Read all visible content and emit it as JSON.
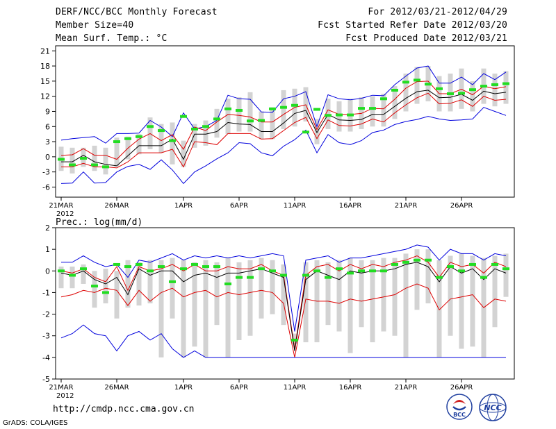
{
  "header": {
    "title": "DERF/NCC/BCC Monthly Forecast",
    "member_size": "Member Size=40",
    "variable": "Mean Surf. Temp.: °C",
    "period": "For 2012/03/21-2012/04/29",
    "started": "Fcst Started Refer Date 2012/03/20",
    "produced": "Fcst Produced Date 2012/03/21"
  },
  "footer": {
    "url": "http://cmdp.ncc.cma.gov.cn",
    "grads": "GrADS: COLA/IGES",
    "logo_bcc": "BCC",
    "logo_ncc": "NCC"
  },
  "colors": {
    "mean": "#000000",
    "obs_range_low": "#dd0000",
    "ensemble_extreme": "#0000dd",
    "obs_marker": "#22dd22",
    "box": "#d3d3d3"
  },
  "chart_data": [
    {
      "type": "line",
      "title": "Mean Surf. Temp.: °C",
      "ylim": [
        -8,
        22
      ],
      "yticks": [
        -6,
        -3,
        0,
        3,
        6,
        9,
        12,
        15,
        18,
        21
      ],
      "xticks": [
        {
          "day": 0,
          "label": "21MAR"
        },
        {
          "day": 5,
          "label": "26MAR"
        },
        {
          "day": 11,
          "label": "1APR"
        },
        {
          "day": 16,
          "label": "6APR"
        },
        {
          "day": 21,
          "label": "11APR"
        },
        {
          "day": 26,
          "label": "16APR"
        },
        {
          "day": 31,
          "label": "21APR"
        },
        {
          "day": 36,
          "label": "26APR"
        }
      ],
      "year_label": "2012",
      "series": [
        {
          "name": "ensemble-max",
          "color": "#0000dd",
          "values": [
            3.3,
            3.6,
            3.8,
            4.0,
            2.7,
            4.6,
            4.6,
            4.7,
            7.2,
            5.9,
            4.0,
            8.7,
            5.5,
            6.0,
            7.2,
            12.2,
            11.5,
            11.4,
            8.9,
            8.8,
            11.5,
            12.0,
            12.9,
            6.0,
            12.3,
            11.5,
            11.3,
            11.6,
            12.2,
            12.1,
            14.3,
            16.0,
            17.6,
            18.0,
            14.6,
            14.6,
            15.8,
            14.3,
            16.5,
            15.3,
            16.8
          ]
        },
        {
          "name": "upper",
          "color": "#dd0000",
          "values": [
            0.3,
            0.4,
            1.6,
            0.3,
            0.3,
            -0.5,
            1.7,
            3.5,
            4.6,
            3.2,
            4.4,
            1.5,
            5.9,
            5.2,
            6.9,
            8.4,
            8.2,
            7.9,
            6.9,
            6.9,
            8.4,
            9.8,
            10.3,
            5.4,
            9.3,
            8.4,
            8.4,
            8.6,
            9.6,
            9.5,
            11.4,
            13.6,
            14.9,
            15.0,
            12.5,
            12.5,
            13.4,
            12.3,
            14.0,
            13.5,
            13.9
          ]
        },
        {
          "name": "mean",
          "color": "#000000",
          "values": [
            -1.0,
            -1.0,
            0.3,
            -1.0,
            -1.5,
            -1.8,
            0.2,
            2.2,
            2.2,
            2.2,
            3.5,
            -0.5,
            4.5,
            4.5,
            5.0,
            6.8,
            6.5,
            6.4,
            5.0,
            5.0,
            6.7,
            8.6,
            9.2,
            4.8,
            8.4,
            7.3,
            7.2,
            7.4,
            8.4,
            8.4,
            10.0,
            11.6,
            12.9,
            13.2,
            11.7,
            11.8,
            12.4,
            11.2,
            13.0,
            12.5,
            12.8
          ]
        },
        {
          "name": "lower",
          "color": "#dd0000",
          "values": [
            -2.0,
            -2.0,
            -1.3,
            -2.0,
            -2.0,
            -2.2,
            -1.0,
            0.8,
            0.8,
            0.8,
            1.5,
            -2.0,
            3.0,
            2.8,
            2.4,
            4.6,
            4.6,
            4.6,
            3.5,
            3.6,
            5.2,
            6.8,
            7.8,
            3.6,
            7.3,
            6.2,
            6.1,
            6.5,
            7.5,
            6.9,
            8.7,
            10.3,
            11.7,
            12.6,
            10.5,
            10.6,
            11.3,
            10.0,
            12.0,
            11.2,
            11.4
          ]
        },
        {
          "name": "ensemble-min",
          "color": "#0000dd",
          "values": [
            -5.3,
            -5.2,
            -3.0,
            -5.2,
            -5.1,
            -3.0,
            -1.9,
            -1.5,
            -2.5,
            -0.6,
            -2.6,
            -5.3,
            -3.0,
            -1.8,
            -0.4,
            0.8,
            2.8,
            2.6,
            0.8,
            0.2,
            2.1,
            3.4,
            5.3,
            0.8,
            4.4,
            2.8,
            2.4,
            3.2,
            4.8,
            5.3,
            6.4,
            7.0,
            7.4,
            8.0,
            7.5,
            7.2,
            7.3,
            7.5,
            9.8,
            9.0,
            8.2
          ]
        }
      ],
      "observations": [
        -0.5,
        -1.6,
        -0.3,
        -1.6,
        -2.0,
        3.0,
        3.6,
        4.0,
        6.0,
        5.2,
        3.2,
        8.0,
        5.5,
        6.0,
        7.5,
        9.5,
        9.2,
        7.1,
        7.2,
        9.5,
        9.8,
        10.2,
        4.9,
        9.4,
        8.2,
        8.3,
        8.3,
        9.6,
        9.6,
        11.5,
        13.2,
        14.8,
        15.2,
        14.4,
        13.5,
        12.5,
        12.6,
        13.3,
        14.0,
        14.3,
        14.5
      ],
      "box_ranges": [
        [
          -2.8,
          2.0
        ],
        [
          -3.3,
          1.8
        ],
        [
          -2.0,
          1.8
        ],
        [
          -2.8,
          2.2
        ],
        [
          -3.5,
          1.8
        ],
        [
          -2.0,
          3.8
        ],
        [
          -0.5,
          4.0
        ],
        [
          0.5,
          4.5
        ],
        [
          1.5,
          7.8
        ],
        [
          0.8,
          6.5
        ],
        [
          -1.5,
          6.8
        ],
        [
          -2.0,
          3.2
        ],
        [
          1.8,
          6.5
        ],
        [
          2.2,
          7.2
        ],
        [
          3.8,
          9.5
        ],
        [
          4.5,
          11.5
        ],
        [
          5.0,
          11.8
        ],
        [
          5.0,
          12.8
        ],
        [
          3.5,
          9.0
        ],
        [
          3.5,
          9.8
        ],
        [
          5.5,
          13.2
        ],
        [
          6.0,
          13.5
        ],
        [
          7.0,
          13.8
        ],
        [
          2.5,
          7.5
        ],
        [
          5.5,
          11.5
        ],
        [
          5.0,
          11.0
        ],
        [
          5.0,
          11.5
        ],
        [
          5.5,
          11.8
        ],
        [
          6.0,
          12.0
        ],
        [
          6.0,
          12.5
        ],
        [
          7.5,
          14.0
        ],
        [
          9.0,
          16.5
        ],
        [
          10.5,
          17.8
        ],
        [
          11.0,
          18.0
        ],
        [
          9.0,
          16.0
        ],
        [
          9.0,
          16.5
        ],
        [
          9.5,
          17.5
        ],
        [
          9.0,
          15.0
        ],
        [
          10.5,
          17.5
        ],
        [
          10.0,
          16.5
        ],
        [
          10.5,
          17.0
        ]
      ]
    },
    {
      "type": "line",
      "title": "Prec.: log(mm/d)",
      "ylim": [
        -5,
        2
      ],
      "yticks": [
        -5,
        -4,
        -3,
        -2,
        -1,
        0,
        1,
        2
      ],
      "xticks": [
        {
          "day": 0,
          "label": "21MAR"
        },
        {
          "day": 5,
          "label": "26MAR"
        },
        {
          "day": 11,
          "label": "1APR"
        },
        {
          "day": 16,
          "label": "6APR"
        },
        {
          "day": 21,
          "label": "11APR"
        },
        {
          "day": 26,
          "label": "16APR"
        },
        {
          "day": 31,
          "label": "21APR"
        },
        {
          "day": 36,
          "label": "26APR"
        }
      ],
      "year_label": "2012",
      "series": [
        {
          "name": "ensemble-max",
          "color": "#0000dd",
          "values": [
            0.4,
            0.4,
            0.7,
            0.4,
            0.2,
            0.3,
            -0.3,
            0.5,
            0.4,
            0.6,
            0.8,
            0.5,
            0.7,
            0.6,
            0.7,
            0.6,
            0.7,
            0.6,
            0.7,
            0.8,
            0.7,
            -2.8,
            0.5,
            0.6,
            0.7,
            0.4,
            0.6,
            0.6,
            0.7,
            0.8,
            0.9,
            1.0,
            1.2,
            1.1,
            0.5,
            1.0,
            0.8,
            0.8,
            0.5,
            0.8,
            0.7
          ]
        },
        {
          "name": "upper",
          "color": "#dd0000",
          "values": [
            0.0,
            -0.1,
            0.1,
            -0.3,
            -0.5,
            0.2,
            -0.9,
            0.2,
            0.0,
            0.1,
            0.3,
            0.0,
            0.3,
            0.0,
            0.0,
            0.2,
            0.1,
            0.1,
            0.3,
            0.0,
            -0.2,
            -3.6,
            -0.2,
            0.2,
            0.3,
            0.0,
            0.3,
            0.1,
            0.3,
            0.2,
            0.4,
            0.5,
            0.7,
            0.4,
            -0.3,
            0.4,
            0.2,
            0.3,
            -0.1,
            0.4,
            0.2
          ]
        },
        {
          "name": "mean",
          "color": "#000000",
          "values": [
            -0.1,
            -0.2,
            0.0,
            -0.4,
            -0.6,
            -0.3,
            -1.1,
            0.1,
            -0.2,
            0.0,
            0.0,
            -0.5,
            -0.2,
            -0.1,
            -0.3,
            -0.1,
            -0.1,
            0.0,
            0.1,
            -0.1,
            -0.3,
            -3.7,
            -0.4,
            0.0,
            -0.2,
            -0.4,
            0.0,
            -0.1,
            0.0,
            0.0,
            0.1,
            0.3,
            0.4,
            0.2,
            -0.5,
            0.2,
            -0.1,
            0.1,
            -0.4,
            0.1,
            -0.1
          ]
        },
        {
          "name": "lower",
          "color": "#dd0000",
          "values": [
            -1.2,
            -1.1,
            -0.9,
            -1.0,
            -0.8,
            -0.9,
            -1.6,
            -0.9,
            -1.4,
            -1.0,
            -0.8,
            -1.2,
            -1.0,
            -0.9,
            -1.2,
            -1.0,
            -1.1,
            -1.0,
            -0.9,
            -1.0,
            -1.5,
            -4.0,
            -1.3,
            -1.4,
            -1.4,
            -1.5,
            -1.3,
            -1.4,
            -1.3,
            -1.2,
            -1.1,
            -0.8,
            -0.6,
            -0.8,
            -1.8,
            -1.3,
            -1.2,
            -1.1,
            -1.7,
            -1.3,
            -1.4
          ]
        },
        {
          "name": "ensemble-min",
          "color": "#0000dd",
          "values": [
            -3.1,
            -2.9,
            -2.5,
            -2.9,
            -3.0,
            -3.7,
            -3.0,
            -2.8,
            -3.2,
            -2.9,
            -3.6,
            -4.0,
            -3.7,
            -4.0,
            -4.0,
            -4.0,
            -4.0,
            -4.0,
            -4.0,
            -4.0,
            -4.0,
            -4.0,
            -4.0,
            -4.0,
            -4.0,
            -4.0,
            -4.0,
            -4.0,
            -4.0,
            -4.0,
            -4.0,
            -4.0,
            -4.0,
            -4.0,
            -4.0,
            -4.0,
            -4.0,
            -4.0,
            -4.0,
            -4.0,
            -4.0
          ]
        }
      ],
      "observations": [
        0.0,
        -0.2,
        0.1,
        -0.7,
        -1.0,
        0.3,
        0.2,
        0.3,
        0.0,
        0.2,
        -0.5,
        0.1,
        0.3,
        0.2,
        0.2,
        -0.6,
        -0.3,
        -0.3,
        0.1,
        0.0,
        -0.2,
        -3.2,
        -0.2,
        0.0,
        -0.3,
        0.1,
        -0.1,
        0.0,
        0.0,
        0.0,
        0.3,
        0.4,
        0.5,
        0.5,
        -0.3,
        0.2,
        0.0,
        0.3,
        -0.3,
        0.3,
        0.1
      ],
      "box_ranges": [
        [
          -0.8,
          0.2
        ],
        [
          -0.8,
          0.2
        ],
        [
          -0.6,
          0.3
        ],
        [
          -1.7,
          0.0
        ],
        [
          -1.5,
          0.1
        ],
        [
          -2.2,
          0.0
        ],
        [
          -1.7,
          0.5
        ],
        [
          -1.6,
          0.4
        ],
        [
          -1.5,
          0.5
        ],
        [
          -4.0,
          0.5
        ],
        [
          -2.2,
          0.6
        ],
        [
          -4.0,
          0.5
        ],
        [
          -3.5,
          0.4
        ],
        [
          -4.0,
          0.5
        ],
        [
          -2.5,
          0.4
        ],
        [
          -4.0,
          0.6
        ],
        [
          -3.2,
          0.4
        ],
        [
          -3.0,
          0.5
        ],
        [
          -2.2,
          0.6
        ],
        [
          -2.0,
          0.5
        ],
        [
          -2.5,
          0.3
        ],
        [
          -3.4,
          -2.9
        ],
        [
          -3.3,
          0.4
        ],
        [
          -3.3,
          0.5
        ],
        [
          -2.5,
          0.4
        ],
        [
          -2.8,
          0.5
        ],
        [
          -3.8,
          0.6
        ],
        [
          -2.6,
          0.5
        ],
        [
          -3.3,
          0.5
        ],
        [
          -2.8,
          0.6
        ],
        [
          -3.0,
          0.6
        ],
        [
          -4.0,
          0.8
        ],
        [
          -1.8,
          1.0
        ],
        [
          -1.5,
          1.0
        ],
        [
          -4.0,
          0.5
        ],
        [
          -3.0,
          0.7
        ],
        [
          -3.6,
          0.8
        ],
        [
          -3.5,
          0.7
        ],
        [
          -4.0,
          0.6
        ],
        [
          -2.6,
          0.7
        ],
        [
          -1.2,
          0.8
        ]
      ]
    }
  ]
}
